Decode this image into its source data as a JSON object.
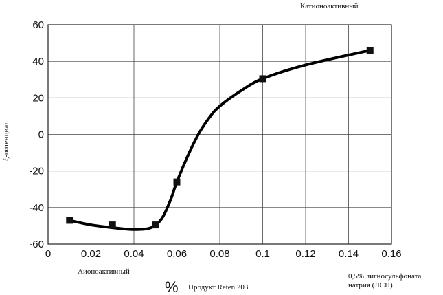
{
  "chart_data": {
    "type": "line",
    "xlabel": "Продукт Reten 203",
    "xlabel_unit": "%",
    "ylabel": "ξ-потенциал",
    "xlim": [
      0,
      0.16
    ],
    "ylim": [
      -60,
      60
    ],
    "x_ticks": [
      "0",
      "0.02",
      "0.04",
      "0.06",
      "0.08",
      "0.1",
      "0.12",
      "0.14",
      "0.16"
    ],
    "y_ticks": [
      "60",
      "40",
      "20",
      "0",
      "-20",
      "-40",
      "-60"
    ],
    "grid": true,
    "series": [
      {
        "points": [
          {
            "x": 0.01,
            "y": -47
          },
          {
            "x": 0.03,
            "y": -49.5
          },
          {
            "x": 0.05,
            "y": -49.5
          },
          {
            "x": 0.06,
            "y": -26
          },
          {
            "x": 0.1,
            "y": 30.5
          },
          {
            "x": 0.15,
            "y": 46
          }
        ],
        "curve": [
          {
            "x": 0.01,
            "y": -47
          },
          {
            "x": 0.02,
            "y": -49.5
          },
          {
            "x": 0.03,
            "y": -51
          },
          {
            "x": 0.04,
            "y": -52
          },
          {
            "x": 0.048,
            "y": -51
          },
          {
            "x": 0.053,
            "y": -46
          },
          {
            "x": 0.057,
            "y": -36
          },
          {
            "x": 0.06,
            "y": -26
          },
          {
            "x": 0.065,
            "y": -12
          },
          {
            "x": 0.07,
            "y": 0
          },
          {
            "x": 0.075,
            "y": 9
          },
          {
            "x": 0.08,
            "y": 15.5
          },
          {
            "x": 0.09,
            "y": 24
          },
          {
            "x": 0.1,
            "y": 30.5
          },
          {
            "x": 0.12,
            "y": 38
          },
          {
            "x": 0.15,
            "y": 46
          }
        ]
      }
    ],
    "annotations": {
      "top_right": "Катионоактивный",
      "bottom_left": "Аионоактивный",
      "bottom_right_line1": "0,5% лигносульфоната",
      "bottom_right_line2": "натрия (ЛСН)"
    },
    "colors": {
      "line": "#000000",
      "grid": "#444444",
      "marker": "#111111"
    }
  }
}
